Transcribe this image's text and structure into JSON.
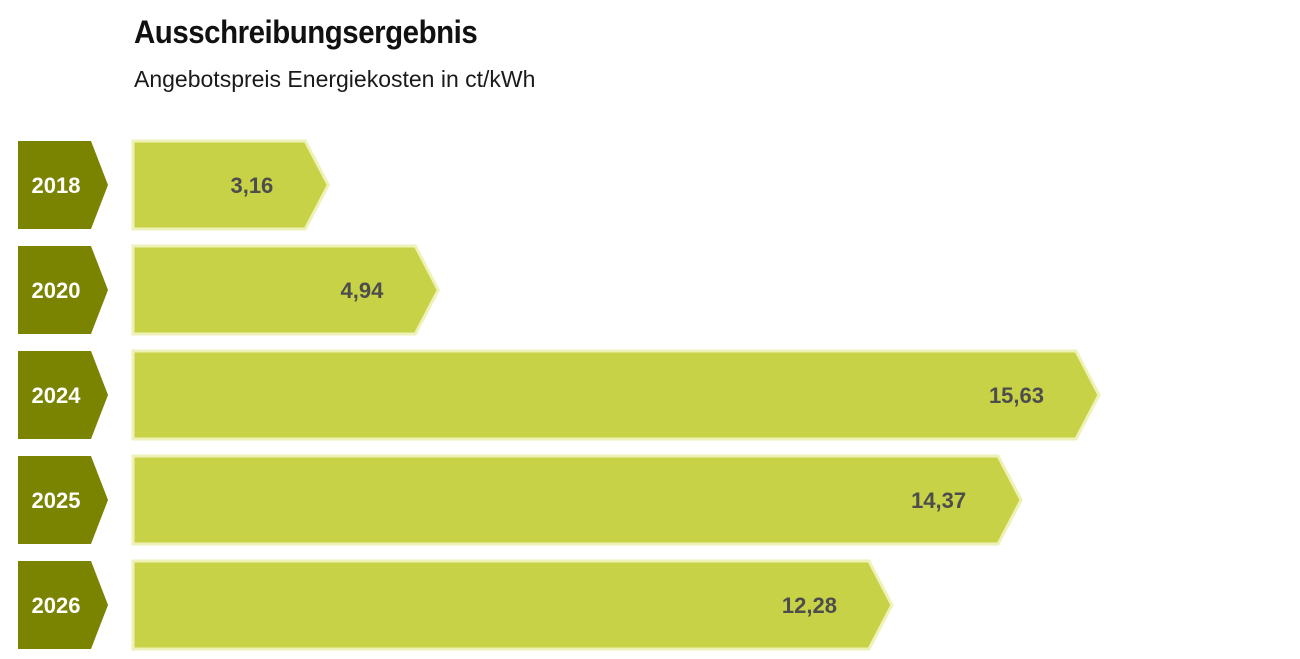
{
  "chart_data": {
    "type": "bar",
    "orientation": "horizontal",
    "title": "Ausschreibungsergebnis",
    "subtitle": "Angebotspreis Energiekosten in ct/kWh",
    "categories": [
      "2018",
      "2020",
      "2024",
      "2025",
      "2026"
    ],
    "values": [
      3.16,
      4.94,
      15.63,
      14.37,
      12.28
    ],
    "value_labels": [
      "3,16",
      "4,94",
      "15,63",
      "14,37",
      "12,28"
    ],
    "xlim": [
      0,
      15.63
    ],
    "grid": false,
    "legend": "none"
  },
  "colors": {
    "category_tag": "#7a8400",
    "bar_fill": "#c8d246",
    "bar_outline": "#eef2b8",
    "value_text": "#4d4d4d",
    "tag_text": "#ffffff"
  }
}
